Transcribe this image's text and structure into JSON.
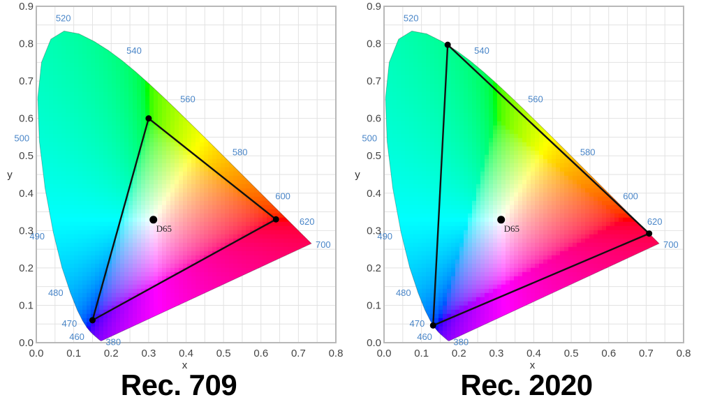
{
  "chart_data": [
    {
      "type": "scatter",
      "title": "Rec. 709",
      "xlabel": "x",
      "ylabel": "y",
      "xlim": [
        0.0,
        0.8
      ],
      "ylim": [
        0.0,
        0.9
      ],
      "grid": true,
      "x_ticks": [
        "0.0",
        "0.1",
        "0.2",
        "0.3",
        "0.4",
        "0.5",
        "0.6",
        "0.7",
        "0.8"
      ],
      "y_ticks": [
        "0.0",
        "0.1",
        "0.2",
        "0.3",
        "0.4",
        "0.5",
        "0.6",
        "0.7",
        "0.8",
        "0.9"
      ],
      "wavelength_labels": [
        "380",
        "460",
        "470",
        "480",
        "490",
        "500",
        "520",
        "540",
        "560",
        "580",
        "600",
        "620",
        "700"
      ],
      "gamut_triangle": {
        "red": {
          "x": 0.64,
          "y": 0.33
        },
        "green": {
          "x": 0.3,
          "y": 0.6
        },
        "blue": {
          "x": 0.15,
          "y": 0.06
        }
      },
      "white_point": {
        "label": "D65",
        "x": 0.3127,
        "y": 0.329
      }
    },
    {
      "type": "scatter",
      "title": "Rec. 2020",
      "xlabel": "x",
      "ylabel": "y",
      "xlim": [
        0.0,
        0.8
      ],
      "ylim": [
        0.0,
        0.9
      ],
      "grid": true,
      "x_ticks": [
        "0.0",
        "0.1",
        "0.2",
        "0.3",
        "0.4",
        "0.5",
        "0.6",
        "0.7",
        "0.8"
      ],
      "y_ticks": [
        "0.0",
        "0.1",
        "0.2",
        "0.3",
        "0.4",
        "0.5",
        "0.6",
        "0.7",
        "0.8",
        "0.9"
      ],
      "wavelength_labels": [
        "380",
        "460",
        "470",
        "480",
        "490",
        "500",
        "520",
        "540",
        "560",
        "580",
        "600",
        "620",
        "700"
      ],
      "gamut_triangle": {
        "red": {
          "x": 0.708,
          "y": 0.292
        },
        "green": {
          "x": 0.17,
          "y": 0.797
        },
        "blue": {
          "x": 0.131,
          "y": 0.046
        }
      },
      "white_point": {
        "label": "D65",
        "x": 0.3127,
        "y": 0.329
      }
    }
  ],
  "panels": [
    {
      "caption": "Rec. 709"
    },
    {
      "caption": "Rec. 2020"
    }
  ]
}
